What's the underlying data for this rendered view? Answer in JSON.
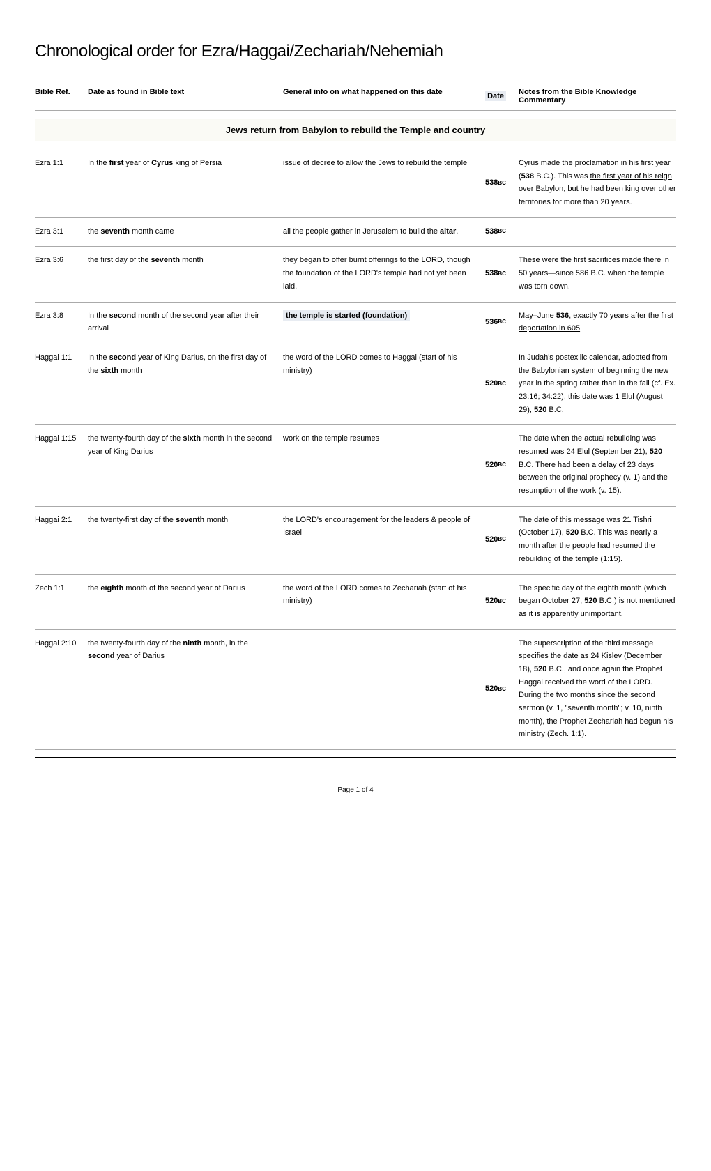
{
  "title": "Chronological order for Ezra/Haggai/Zechariah/Nehemiah",
  "headers": {
    "ref": "Bible Ref.",
    "datetext": "Date as found in Bible text",
    "info": "General info on what happened on this date",
    "date": "Date",
    "notes": "Notes from the Bible Knowledge Commentary"
  },
  "sectionBanner": "Jews return from Babylon to rebuild the Temple and country",
  "rows": [
    {
      "ref": "Ezra 1:1",
      "datetext_html": "In the <b>first</b> year of <b>Cyrus</b> king of Persia",
      "info": "issue of decree to allow the Jews to rebuild the temple",
      "date": "538",
      "notes_html": "Cyrus made the proclamation in his first year (<b>538</b> B.C.). This was <span class='underline'>the first year of his reign over Babylon</span>, but he had been king over other territories for more than 20 years."
    },
    {
      "ref": "Ezra 3:1",
      "datetext_html": "the <b>seventh</b> month came",
      "info_html": "all the people gather in Jerusalem to build the <b>altar</b>.",
      "date": "538",
      "notes": ""
    },
    {
      "ref": "Ezra 3:6",
      "datetext_html": "the first day of the <b>seventh</b> month",
      "info": "they began to offer burnt offerings to the LORD, though the foundation of the LORD's temple had not yet been laid.",
      "date": "538",
      "notes": "These were the first sacrifices made there in 50 years—since 586 B.C. when the temple was torn down."
    },
    {
      "ref": "Ezra 3:8",
      "datetext_html": "In the <b>second</b> month of the second year after their arrival",
      "info_html": "<span class='info-hl'>the temple is started (foundation)</span>",
      "date": "536",
      "notes_html": "May–June <b>536</b>, <span class='underline'>exactly 70 years after the first deportation in 605</span>"
    },
    {
      "ref": "Haggai 1:1",
      "datetext_html": "In the <b>second</b> year of King Darius, on the first day of the <b>sixth</b> month",
      "info": "the word of the LORD comes to Haggai (start of his ministry)",
      "date": "520",
      "notes_html": "In Judah's postexilic calendar, adopted from the Babylonian system of beginning the new year in the spring rather than in the fall (cf. Ex. 23:16; 34:22), this date was 1 Elul (August 29), <b>520</b> B.C."
    },
    {
      "ref": "Haggai 1:15",
      "datetext_html": "the twenty-fourth day of the <b>sixth</b> month in the second year of King Darius",
      "info": "work on the temple resumes",
      "date": "520",
      "notes_html": "The date when the actual rebuilding was resumed was 24 Elul (September 21), <b>520</b> B.C. There had been a delay of 23 days between the original prophecy (v. 1) and the resumption of the work (v. 15)."
    },
    {
      "ref": "Haggai 2:1",
      "datetext_html": "the twenty-first day of the <b>seventh</b> month",
      "info": "the LORD's encouragement for the leaders & people of Israel",
      "date": "520",
      "notes_html": "The date of this message was 21 Tishri (October 17), <b>520</b> B.C. This was nearly a month after the people had resumed the rebuilding of the temple (1:15)."
    },
    {
      "ref": "Zech 1:1",
      "datetext_html": "the <b>eighth</b> month of the second year of Darius",
      "info": "the word of the LORD comes to Zechariah (start of his ministry)",
      "date": "520",
      "notes_html": "The specific day of the eighth month (which began October 27, <b>520</b> B.C.) is not mentioned as it is apparently unimportant."
    },
    {
      "ref": "Haggai 2:10",
      "datetext_html": "the twenty-fourth day of the <b>ninth</b> month, in the <b>second</b> year of Darius",
      "info": "",
      "date": "520",
      "notes_html": "The superscription of the third message specifies the date as 24 Kislev (December 18), <b>520</b> B.C., and once again the Prophet Haggai received the word of the LORD. During the two months since the second sermon (v. 1, \"seventh month\"; v. 10, ninth month), the Prophet Zechariah had begun his ministry (Zech. 1:1)."
    }
  ],
  "footer": "Page 1 of 4"
}
